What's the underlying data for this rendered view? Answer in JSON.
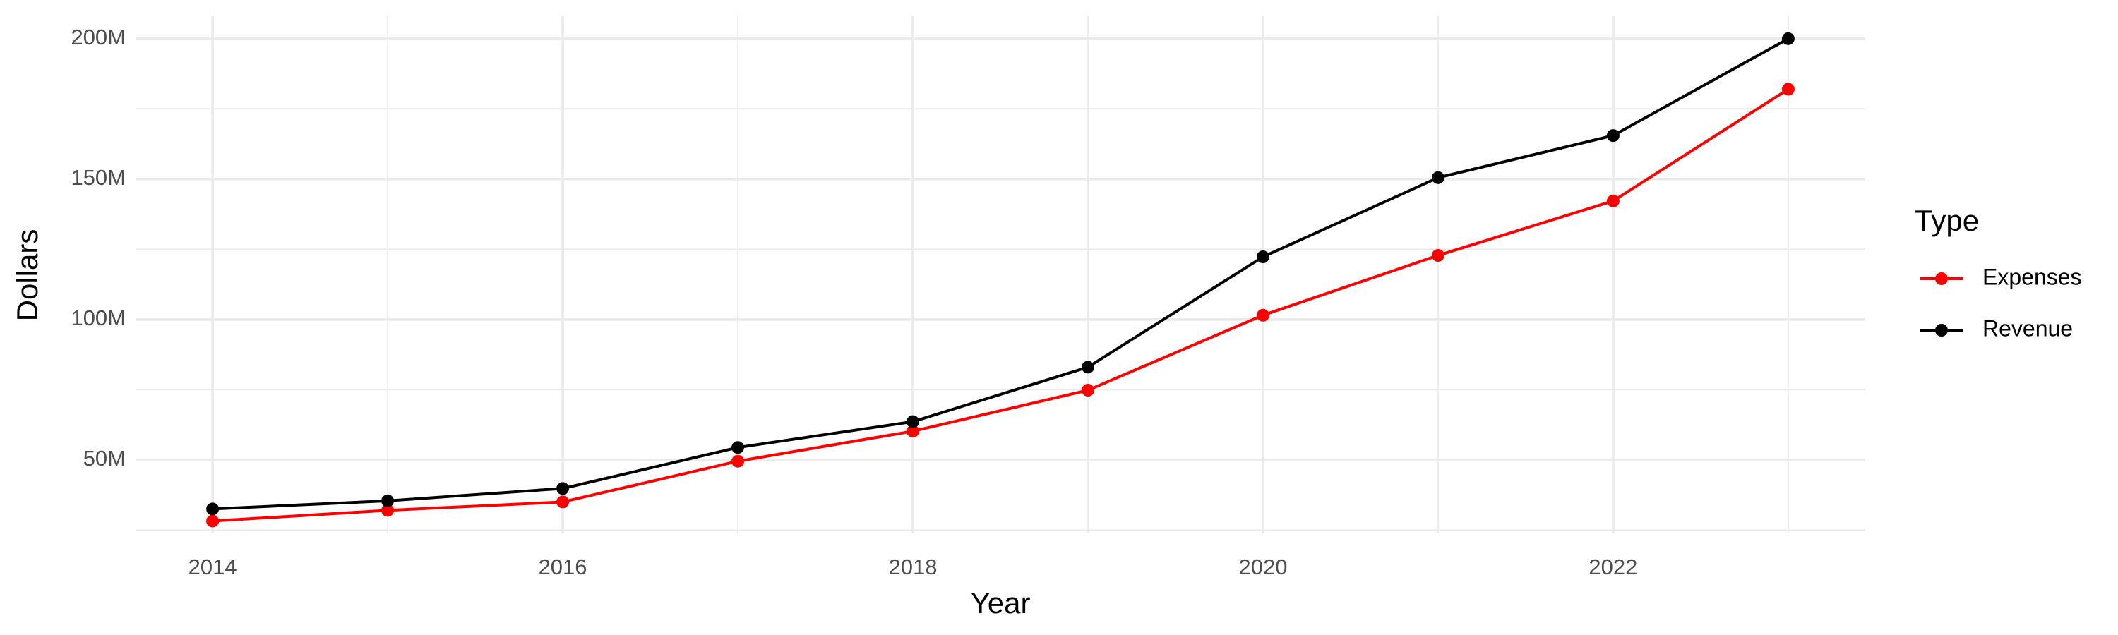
{
  "chart_data": {
    "type": "line",
    "x_label": "Year",
    "y_label": "Dollars",
    "legend_title": "Type",
    "legend_position": "right",
    "grid": true,
    "x": [
      2014,
      2015,
      2016,
      2017,
      2018,
      2019,
      2020,
      2021,
      2022,
      2023
    ],
    "series": [
      {
        "name": "Expenses",
        "color": "#ff0000",
        "values": [
          28200000,
          32000000,
          35000000,
          49500000,
          60200000,
          74800000,
          101500000,
          122800000,
          142200000,
          182000000
        ]
      },
      {
        "name": "Revenue",
        "color": "#000000",
        "values": [
          32500000,
          35400000,
          39800000,
          54400000,
          63600000,
          83000000,
          122300000,
          150500000,
          165500000,
          200000000
        ]
      }
    ],
    "xlim": [
      2013.56,
      2023.44
    ],
    "xticks": [
      2014,
      2016,
      2018,
      2020,
      2022
    ],
    "ylim": [
      23800000,
      208000000
    ],
    "yticks": [
      {
        "value": 50000000,
        "label": "50M"
      },
      {
        "value": 100000000,
        "label": "100M"
      },
      {
        "value": 150000000,
        "label": "150M"
      },
      {
        "value": 200000000,
        "label": "200M"
      }
    ]
  }
}
